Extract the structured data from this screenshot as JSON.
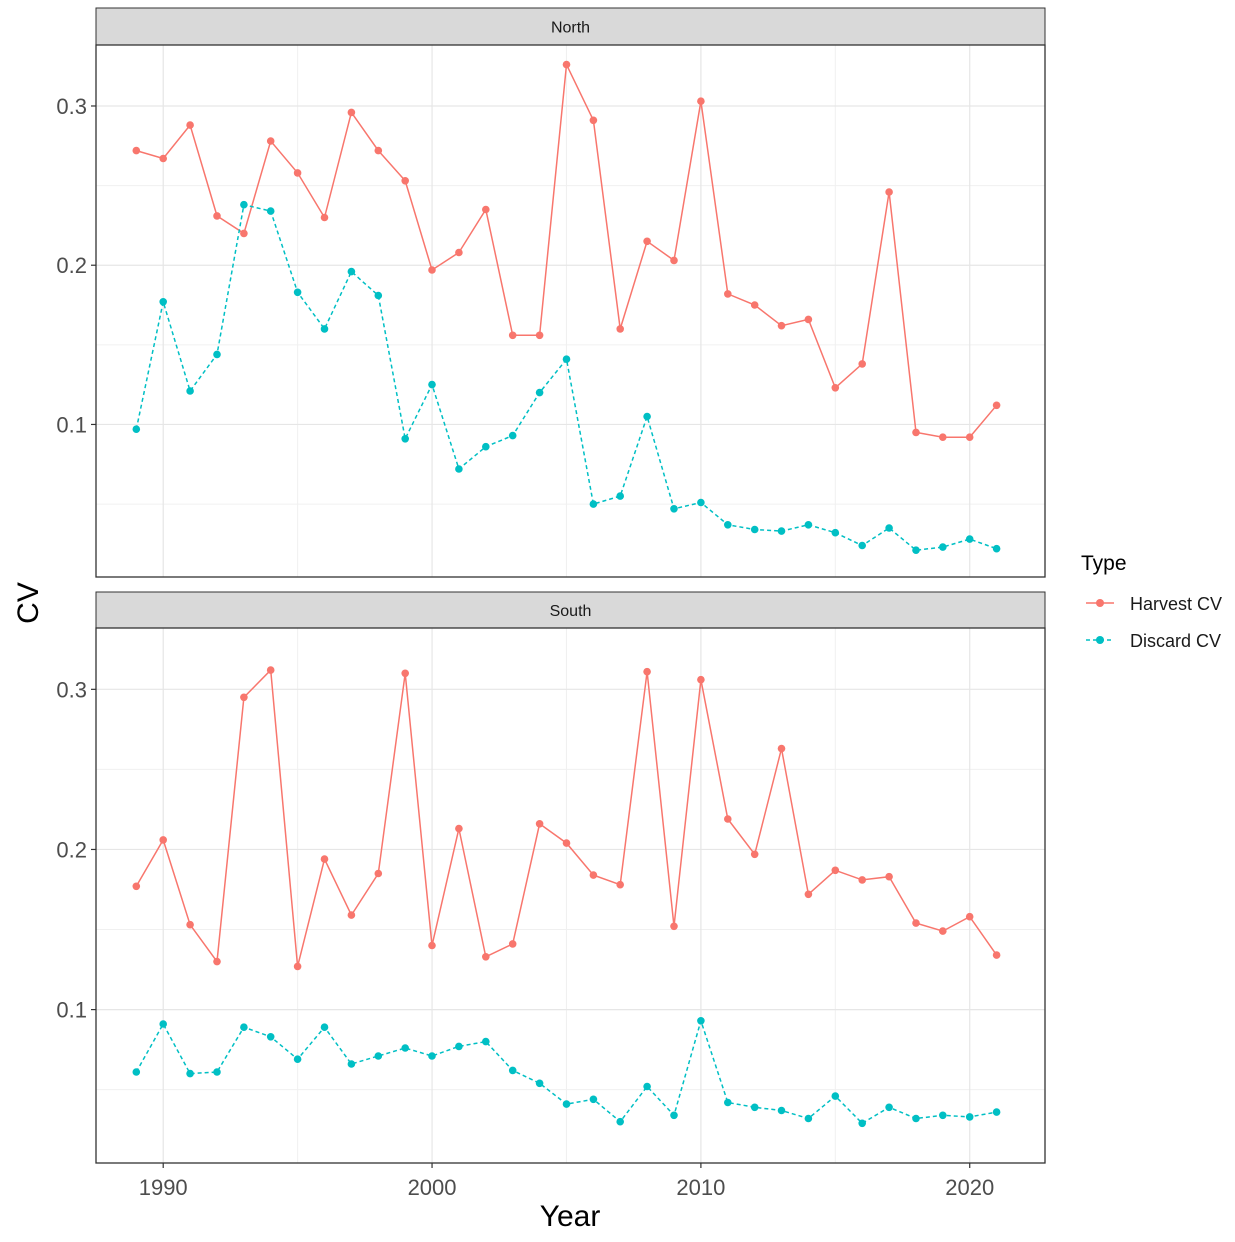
{
  "chart_data": {
    "type": "line",
    "xlabel": "Year",
    "ylabel": "CV",
    "xlim": [
      1987.5,
      2022.8
    ],
    "ylim": [
      0.0042,
      0.3383
    ],
    "x_ticks": [
      1990,
      2000,
      2010,
      2020
    ],
    "y_ticks": [
      0.1,
      0.2,
      0.3
    ],
    "x_tick_labels": [
      "1990",
      "2000",
      "2010",
      "2020"
    ],
    "y_tick_labels": [
      "0.1",
      "0.2",
      "0.3"
    ],
    "grid": true,
    "legend": {
      "title": "Type",
      "position": "right",
      "entries": [
        "Harvest CV",
        "Discard CV"
      ]
    },
    "series_colors": [
      "#F8766D",
      "#00BFC4"
    ],
    "series_line_styles": [
      "solid",
      "dashed"
    ],
    "x": [
      1989,
      1990,
      1991,
      1992,
      1993,
      1994,
      1995,
      1996,
      1997,
      1998,
      1999,
      2000,
      2001,
      2002,
      2003,
      2004,
      2005,
      2006,
      2007,
      2008,
      2009,
      2010,
      2011,
      2012,
      2013,
      2014,
      2015,
      2016,
      2017,
      2018,
      2019,
      2020,
      2021
    ],
    "panels": [
      {
        "strip_label": "North",
        "series": [
          {
            "name": "Harvest CV",
            "values": [
              0.272,
              0.267,
              0.288,
              0.231,
              0.22,
              0.278,
              0.258,
              0.23,
              0.296,
              0.272,
              0.253,
              0.197,
              0.208,
              0.235,
              0.156,
              0.156,
              0.326,
              0.291,
              0.16,
              0.215,
              0.203,
              0.303,
              0.182,
              0.175,
              0.162,
              0.166,
              0.123,
              0.138,
              0.246,
              0.095,
              0.092,
              0.092,
              0.112
            ]
          },
          {
            "name": "Discard CV",
            "values": [
              0.097,
              0.177,
              0.121,
              0.144,
              0.238,
              0.234,
              0.183,
              0.16,
              0.196,
              0.181,
              0.091,
              0.125,
              0.072,
              0.086,
              0.093,
              0.12,
              0.141,
              0.05,
              0.055,
              0.105,
              0.047,
              0.051,
              0.037,
              0.034,
              0.033,
              0.037,
              0.032,
              0.024,
              0.035,
              0.021,
              0.023,
              0.028,
              0.022
            ]
          }
        ]
      },
      {
        "strip_label": "South",
        "series": [
          {
            "name": "Harvest CV",
            "values": [
              0.177,
              0.206,
              0.153,
              0.13,
              0.295,
              0.312,
              0.127,
              0.194,
              0.159,
              0.185,
              0.31,
              0.14,
              0.213,
              0.133,
              0.141,
              0.216,
              0.204,
              0.184,
              0.178,
              0.311,
              0.152,
              0.306,
              0.219,
              0.197,
              0.263,
              0.172,
              0.187,
              0.181,
              0.183,
              0.154,
              0.149,
              0.158,
              0.134
            ]
          },
          {
            "name": "Discard CV",
            "values": [
              0.061,
              0.091,
              0.06,
              0.061,
              0.089,
              0.083,
              0.069,
              0.089,
              0.066,
              0.071,
              0.076,
              0.071,
              0.077,
              0.08,
              0.062,
              0.054,
              0.041,
              0.044,
              0.03,
              0.052,
              0.034,
              0.093,
              0.042,
              0.039,
              0.037,
              0.032,
              0.046,
              0.029,
              0.039,
              0.032,
              0.034,
              0.033,
              0.036
            ]
          }
        ]
      }
    ]
  }
}
